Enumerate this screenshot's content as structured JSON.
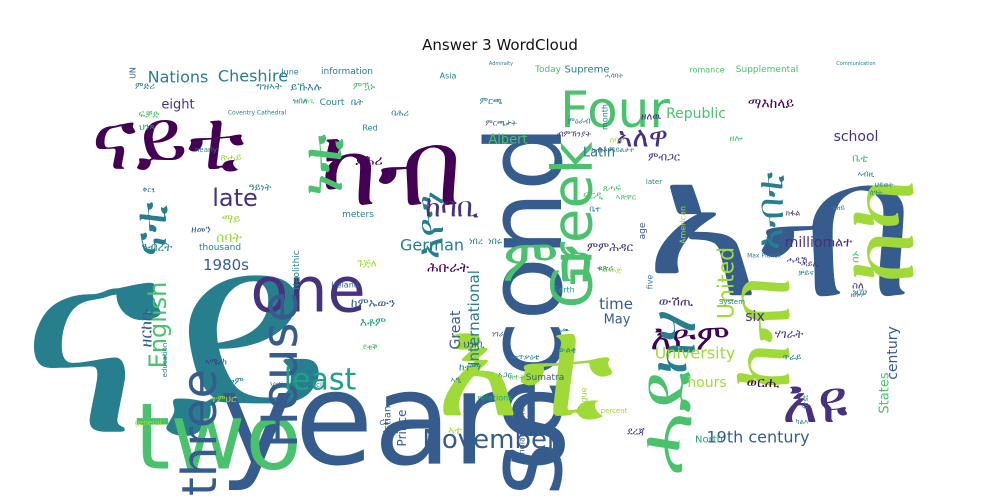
{
  "chart_data": {
    "type": "wordcloud",
    "title": "Answer 3 WordCloud",
    "palette": [
      "#440154",
      "#46327e",
      "#365c8d",
      "#277f8e",
      "#1fa187",
      "#4ac16d",
      "#a0da39",
      "#fde725"
    ],
    "words": [
      {
        "text": "ናይ",
        "color": "#277f8e"
      },
      {
        "text": "years",
        "color": "#365c8d"
      },
      {
        "text": "እዩ",
        "color": "#46327e"
      },
      {
        "text": "second",
        "color": "#365c8d"
      },
      {
        "text": "two",
        "color": "#4ac16d"
      },
      {
        "text": "እቲ",
        "color": "#a0da39"
      },
      {
        "text": "ኣብ",
        "color": "#365c8d"
      },
      {
        "text": "ከብ",
        "color": "#a0da39"
      },
      {
        "text": "ከካ",
        "color": "#a0da39"
      },
      {
        "text": "ናይቲ",
        "color": "#440154"
      },
      {
        "text": "Four",
        "color": "#4ac16d"
      },
      {
        "text": "one",
        "color": "#46327e"
      },
      {
        "text": "three",
        "color": "#365c8d"
      },
      {
        "text": "House",
        "color": "#365c8d"
      },
      {
        "text": "Greek",
        "color": "#4ac16d"
      },
      {
        "text": "November",
        "color": "#365c8d"
      },
      {
        "text": "English",
        "color": "#4ac16d"
      },
      {
        "text": "ምስ",
        "color": "#4ac16d"
      },
      {
        "text": "ሓደ",
        "color": "#4ac16d"
      },
      {
        "text": "least",
        "color": "#1fa187"
      },
      {
        "text": "እዮም",
        "color": "#440154"
      },
      {
        "text": "ካብ",
        "color": "#440154"
      },
      {
        "text": "ኣለዋ",
        "color": "#46327e"
      },
      {
        "text": "ኣብቲ",
        "color": "#277f8e"
      },
      {
        "text": "ኣዮን",
        "color": "#277f8e"
      },
      {
        "text": "ነቲ",
        "color": "#4ac16d"
      },
      {
        "text": "ናቲ",
        "color": "#277f8e"
      },
      {
        "text": "ካሃ",
        "color": "#277f8e"
      },
      {
        "text": "ከባቢ",
        "color": "#46327e"
      },
      {
        "text": "late",
        "color": "#46327e"
      },
      {
        "text": "United",
        "color": "#a0da39"
      },
      {
        "text": "Nations",
        "color": "#277f8e"
      },
      {
        "text": "Cheshire",
        "color": "#277f8e"
      },
      {
        "text": "International",
        "color": "#277f8e"
      },
      {
        "text": "German",
        "color": "#277f8e"
      },
      {
        "text": "University",
        "color": "#a0da39"
      },
      {
        "text": "19th century",
        "color": "#365c8d"
      },
      {
        "text": "1980s",
        "color": "#365c8d"
      },
      {
        "text": "time",
        "color": "#365c8d"
      },
      {
        "text": "hours",
        "color": "#a0da39"
      },
      {
        "text": "May",
        "color": "#365c8d"
      },
      {
        "text": "six",
        "color": "#46327e"
      },
      {
        "text": "Republic",
        "color": "#4ac16d"
      },
      {
        "text": "school",
        "color": "#46327e"
      },
      {
        "text": "million",
        "color": "#46327e"
      },
      {
        "text": "eight",
        "color": "#46327e"
      },
      {
        "text": "Latin",
        "color": "#277f8e"
      },
      {
        "text": "Albert",
        "color": "#4ac16d"
      },
      {
        "text": "Great",
        "color": "#365c8d"
      },
      {
        "text": "century",
        "color": "#365c8d"
      },
      {
        "text": "States",
        "color": "#4ac16d"
      },
      {
        "text": "Prince",
        "color": "#365c8d"
      },
      {
        "text": "Christian",
        "color": "#365c8d"
      },
      {
        "text": "Supreme",
        "color": "#277f8e"
      },
      {
        "text": "Supplemental",
        "color": "#4ac16d"
      },
      {
        "text": "romance",
        "color": "#4ac16d"
      },
      {
        "text": "information",
        "color": "#277f8e"
      },
      {
        "text": "June",
        "color": "#277f8e"
      },
      {
        "text": "Asia",
        "color": "#277f8e"
      },
      {
        "text": "Today",
        "color": "#4ac16d"
      },
      {
        "text": "Court",
        "color": "#277f8e"
      },
      {
        "text": "Red",
        "color": "#277f8e"
      },
      {
        "text": "thousand",
        "color": "#277f8e"
      },
      {
        "text": "Neolithic",
        "color": "#277f8e"
      },
      {
        "text": "Ireland",
        "color": "#365c8d"
      },
      {
        "text": "meters",
        "color": "#277f8e"
      },
      {
        "text": "age",
        "color": "#365c8d"
      },
      {
        "text": "American",
        "color": "#a0da39"
      },
      {
        "text": "five",
        "color": "#277f8e"
      },
      {
        "text": "month",
        "color": "#277f8e"
      },
      {
        "text": "later",
        "color": "#277f8e"
      },
      {
        "text": "third",
        "color": "#4ac16d"
      },
      {
        "text": "Earth",
        "color": "#1fa187"
      },
      {
        "text": "Sumatra",
        "color": "#365c8d"
      },
      {
        "text": "relations",
        "color": "#1fa187"
      },
      {
        "text": "Indiana Jones",
        "color": "#365c8d"
      },
      {
        "text": "League",
        "color": "#a0da39"
      },
      {
        "text": "percent",
        "color": "#a0da39"
      },
      {
        "text": "North",
        "color": "#1fa187"
      },
      {
        "text": "first",
        "color": "#277f8e"
      },
      {
        "text": "education",
        "color": "#277f8e"
      },
      {
        "text": "general",
        "color": "#a0da39"
      },
      {
        "text": "nearly",
        "color": "#277f8e"
      },
      {
        "text": "System",
        "color": "#277f8e"
      },
      {
        "text": "Vatican Council",
        "color": "#277f8e"
      },
      {
        "text": "Coventry Cathedral",
        "color": "#277f8e"
      },
      {
        "text": "UN",
        "color": "#365c8d"
      },
      {
        "text": "CE",
        "color": "#365c8d"
      },
      {
        "text": "Max Planck",
        "color": "#277f8e"
      },
      {
        "text": "Communication",
        "color": "#277f8e"
      },
      {
        "text": "Admiralty",
        "color": "#277f8e"
      },
      {
        "text": "ማእከላይ",
        "color": "#440154"
      },
      {
        "text": "ሕቡራት",
        "color": "#440154"
      },
      {
        "text": "ምምሕዳር",
        "color": "#46327e"
      },
      {
        "text": "ሃገራት",
        "color": "#46327e"
      },
      {
        "text": "ውሽጢ",
        "color": "#46327e"
      },
      {
        "text": "ወርሒ",
        "color": "#440154"
      },
      {
        "text": "ዘርከቡ",
        "color": "#365c8d"
      },
      {
        "text": "ከምኡውን",
        "color": "#365c8d"
      },
      {
        "text": "እቶም",
        "color": "#1fa187"
      },
      {
        "text": "ይኹእሉ",
        "color": "#277f8e"
      },
      {
        "text": "ምዃኑ",
        "color": "#4ac16d"
      },
      {
        "text": "ምብጋር",
        "color": "#46327e"
      },
      {
        "text": "ዘለዉ",
        "color": "#46327e"
      },
      {
        "text": "ብምኽንያት",
        "color": "#46327e"
      },
      {
        "text": "ክልተ",
        "color": "#46327e"
      },
      {
        "text": "ሓዲሽ",
        "color": "#46327e"
      },
      {
        "text": "ንብረት",
        "color": "#277f8e"
      },
      {
        "text": "ሰባት",
        "color": "#a0da39"
      },
      {
        "text": "ማይ",
        "color": "#a0da39"
      },
      {
        "text": "ዘመን",
        "color": "#365c8d"
      },
      {
        "text": "ዓይነት",
        "color": "#277f8e"
      },
      {
        "text": "ግዝኣት",
        "color": "#277f8e"
      },
      {
        "text": "ኩሎም",
        "color": "#277f8e"
      },
      {
        "text": "ኣሜሪካ",
        "color": "#46327e"
      },
      {
        "text": "ተምህሮ",
        "color": "#a0da39"
      },
      {
        "text": "ምድሪ",
        "color": "#277f8e"
      },
      {
        "text": "ጽሓይ",
        "color": "#a0da39"
      },
      {
        "text": "ጸሓፍ",
        "color": "#4ac16d"
      },
      {
        "text": "ፍርዲ",
        "color": "#4ac16d"
      },
      {
        "text": "ጉጅለ",
        "color": "#a0da39"
      },
      {
        "text": "ደቂቕ",
        "color": "#4ac16d"
      },
      {
        "text": "ደረጃ",
        "color": "#46327e"
      },
      {
        "text": "መጥቃዕቲ",
        "color": "#277f8e"
      },
      {
        "text": "ከተማ",
        "color": "#277f8e"
      },
      {
        "text": "ህዝቢ",
        "color": "#365c8d"
      },
      {
        "text": "ኣዒ",
        "color": "#277f8e"
      },
      {
        "text": "ዘሎ",
        "color": "#4ac16d"
      },
      {
        "text": "ኣቲ",
        "color": "#a0da39"
      },
      {
        "text": "ቤት",
        "color": "#277f8e"
      },
      {
        "text": "ቤቲ",
        "color": "#4ac16d"
      },
      {
        "text": "ሰኑ",
        "color": "#4ac16d"
      },
      {
        "text": "ባሕሪ",
        "color": "#277f8e"
      },
      {
        "text": "ደሕሪ",
        "color": "#440154"
      },
      {
        "text": "ሰባቲ",
        "color": "#a0da39"
      },
      {
        "text": "ዝበለ",
        "color": "#277f8e"
      },
      {
        "text": "ምርጫ",
        "color": "#277f8e"
      },
      {
        "text": "ሓሳባት",
        "color": "#277f8e"
      },
      {
        "text": "ሓይሊ",
        "color": "#46327e"
      },
      {
        "text": "ፍቓድ",
        "color": "#4ac16d"
      },
      {
        "text": "ህንጻ",
        "color": "#1fa187"
      },
      {
        "text": "ቅርፂ",
        "color": "#277f8e"
      },
      {
        "text": "ሕጊ",
        "color": "#4ac16d"
      },
      {
        "text": "ክፋል",
        "color": "#46327e"
      },
      {
        "text": "ስለ",
        "color": "#46327e"
      },
      {
        "text": "ነበረ",
        "color": "#277f8e"
      },
      {
        "text": "ነበሩ",
        "color": "#277f8e"
      },
      {
        "text": "ነገራት",
        "color": "#365c8d"
      },
      {
        "text": "ኣጋር",
        "color": "#277f8e"
      },
      {
        "text": "ኣጽዋር",
        "color": "#4ac16d"
      },
      {
        "text": "ቤተ",
        "color": "#277f8e"
      },
      {
        "text": "ከተት",
        "color": "#4ac16d"
      },
      {
        "text": "ምርጫታት",
        "color": "#365c8d"
      },
      {
        "text": "ውልቂ",
        "color": "#277f8e"
      },
      {
        "text": "ሓሙ",
        "color": "#277f8e"
      },
      {
        "text": "ጥራይ",
        "color": "#277f8e"
      },
      {
        "text": "ቻይና",
        "color": "#277f8e"
      },
      {
        "text": "ዝኾነ",
        "color": "#277f8e"
      },
      {
        "text": "ዘሎዎ",
        "color": "#277f8e"
      },
      {
        "text": "ካልእ",
        "color": "#277f8e"
      },
      {
        "text": "ብዘይ",
        "color": "#277f8e"
      },
      {
        "text": "ኣብዚ",
        "color": "#277f8e"
      },
      {
        "text": "ህይወት",
        "color": "#277f8e"
      },
      {
        "text": "ሰዓት",
        "color": "#277f8e"
      },
      {
        "text": "ውሕጅ",
        "color": "#a0da39"
      },
      {
        "text": "ቁጽሪ",
        "color": "#277f8e"
      },
      {
        "text": "ምዕራብ",
        "color": "#277f8e"
      },
      {
        "text": "ኣብቶም",
        "color": "#365c8d"
      },
      {
        "text": "ሓይልታት",
        "color": "#277f8e"
      }
    ]
  }
}
